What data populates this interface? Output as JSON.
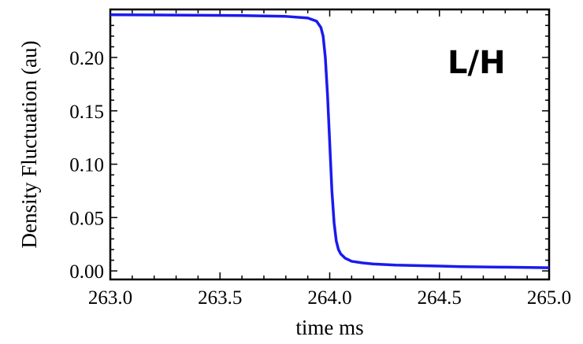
{
  "chart_data": {
    "type": "line",
    "xlabel": "time ms",
    "ylabel": "Density Fluctuation (au)",
    "annotation": "L/H",
    "xlim": [
      263.0,
      265.0
    ],
    "ylim": [
      -0.008,
      0.245
    ],
    "x_ticks": [
      263.0,
      263.5,
      264.0,
      264.5,
      265.0
    ],
    "x_tick_labels": [
      "263.0",
      "263.5",
      "264.0",
      "264.5",
      "265.0"
    ],
    "y_ticks": [
      0.0,
      0.05,
      0.1,
      0.15,
      0.2
    ],
    "y_tick_labels": [
      "0.00",
      "0.05",
      "0.10",
      "0.15",
      "0.20"
    ],
    "grid": false,
    "series": [
      {
        "color": "#1a1aee",
        "x": [
          263.0,
          263.2,
          263.4,
          263.6,
          263.8,
          263.9,
          263.94,
          263.96,
          263.97,
          263.98,
          263.99,
          264.0,
          264.01,
          264.02,
          264.03,
          264.04,
          264.05,
          264.07,
          264.1,
          264.15,
          264.2,
          264.3,
          264.4,
          264.5,
          264.6,
          264.8,
          265.0
        ],
        "y": [
          0.24,
          0.2398,
          0.2396,
          0.2393,
          0.2385,
          0.237,
          0.234,
          0.228,
          0.22,
          0.2,
          0.165,
          0.12,
          0.075,
          0.045,
          0.028,
          0.02,
          0.016,
          0.012,
          0.009,
          0.0075,
          0.0065,
          0.0055,
          0.005,
          0.0045,
          0.004,
          0.0035,
          0.003
        ]
      }
    ]
  }
}
